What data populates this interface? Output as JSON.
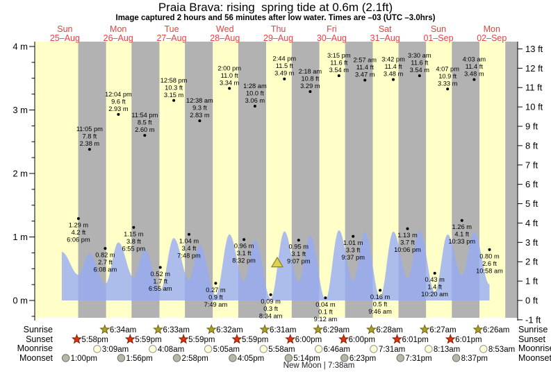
{
  "title": "Praia Brava: rising  spring tide at 0.6m (2.1ft)",
  "subtitle": "Image captured 2 hours and 56 minutes after low water. Times are –03 (UTC –3.0hrs)",
  "colors": {
    "day_band": "#ffffc8",
    "night_band": "#b2b2b2",
    "tide_fill": "#96aaf5",
    "header_red": "#e84040",
    "sunrise_star": "#ac9f2a",
    "sunset_star": "#e2330d",
    "moonrise_fill": "#ffffd8",
    "moonset_fill": "#b6b6aa",
    "marker_fill": "#ddd14f"
  },
  "chart_data": {
    "type": "area",
    "x_axis": {
      "days": [
        {
          "name": "Sun",
          "date": "25–Aug"
        },
        {
          "name": "Mon",
          "date": "26–Aug"
        },
        {
          "name": "Tue",
          "date": "27–Aug"
        },
        {
          "name": "Wed",
          "date": "28–Aug"
        },
        {
          "name": "Thu",
          "date": "29–Aug"
        },
        {
          "name": "Fri",
          "date": "30–Aug"
        },
        {
          "name": "Sat",
          "date": "31–Aug"
        },
        {
          "name": "Sun",
          "date": "01–Sep"
        },
        {
          "name": "Mon",
          "date": "02–Sep"
        }
      ]
    },
    "y_axis_left": {
      "unit": "m",
      "ticks": [
        "4 m",
        "3 m",
        "2 m",
        "1 m",
        "0 m"
      ]
    },
    "y_axis_right": {
      "unit": "ft",
      "ticks": [
        "13 ft",
        "12 ft",
        "11 ft",
        "10 ft",
        "9 ft",
        "8 ft",
        "7 ft",
        "6 ft",
        "5 ft",
        "4 ft",
        "3 ft",
        "2 ft",
        "1 ft",
        "0 ft",
        "-1 ft"
      ]
    },
    "tide_events": [
      {
        "day": 0,
        "type": "low",
        "time": "6:06 pm",
        "height_m": "1.29 m",
        "height_ft": "4.2 ft"
      },
      {
        "day": 0,
        "type": "high",
        "time": "11:05 pm",
        "height_m": "2.38 m",
        "height_ft": "7.8 ft"
      },
      {
        "day": 1,
        "type": "low",
        "time": "6:08 am",
        "height_m": "0.82 m",
        "height_ft": "2.7 ft"
      },
      {
        "day": 1,
        "type": "high",
        "time": "12:04 pm",
        "height_m": "2.93 m",
        "height_ft": "9.6 ft"
      },
      {
        "day": 1,
        "type": "low",
        "time": "6:55 pm",
        "height_m": "1.15 m",
        "height_ft": "3.8 ft"
      },
      {
        "day": 1,
        "type": "high",
        "time": "11:54 pm",
        "height_m": "2.60 m",
        "height_ft": "8.5 ft"
      },
      {
        "day": 2,
        "type": "low",
        "time": "6:55 am",
        "height_m": "0.52 m",
        "height_ft": "1.7 ft"
      },
      {
        "day": 2,
        "type": "high",
        "time": "12:58 pm",
        "height_m": "3.15 m",
        "height_ft": "10.3 ft"
      },
      {
        "day": 2,
        "type": "low",
        "time": "7:48 pm",
        "height_m": "1.04 m",
        "height_ft": "3.4 ft"
      },
      {
        "day": 3,
        "type": "high",
        "time": "12:38 am",
        "height_m": "2.83 m",
        "height_ft": "9.3 ft"
      },
      {
        "day": 3,
        "type": "low",
        "time": "7:49 am",
        "height_m": "0.27 m",
        "height_ft": "0.9 ft"
      },
      {
        "day": 3,
        "type": "high",
        "time": "2:00 pm",
        "height_m": "3.34 m",
        "height_ft": "11.0 ft"
      },
      {
        "day": 3,
        "type": "low",
        "time": "8:32 pm",
        "height_m": "0.96 m",
        "height_ft": "3.1 ft"
      },
      {
        "day": 4,
        "type": "high",
        "time": "1:28 am",
        "height_m": "3.06 m",
        "height_ft": "10.0 ft"
      },
      {
        "day": 4,
        "type": "low",
        "time": "8:34 am",
        "height_m": "0.09 m",
        "height_ft": "0.3 ft"
      },
      {
        "day": 4,
        "type": "high",
        "time": "2:44 pm",
        "height_m": "3.49 m",
        "height_ft": "11.5 ft"
      },
      {
        "day": 4,
        "type": "low",
        "time": "9:07 pm",
        "height_m": "0.95 m",
        "height_ft": "3.1 ft"
      },
      {
        "day": 5,
        "type": "high",
        "time": "2:18 am",
        "height_m": "3.29 m",
        "height_ft": "10.8 ft"
      },
      {
        "day": 5,
        "type": "low",
        "time": "9:12 am",
        "height_m": "0.04 m",
        "height_ft": "0.1 ft"
      },
      {
        "day": 5,
        "type": "high",
        "time": "3:15 pm",
        "height_m": "3.54 m",
        "height_ft": "11.6 ft"
      },
      {
        "day": 5,
        "type": "low",
        "time": "9:37 pm",
        "height_m": "1.01 m",
        "height_ft": "3.3 ft"
      },
      {
        "day": 6,
        "type": "high",
        "time": "2:57 am",
        "height_m": "3.47 m",
        "height_ft": "11.4 ft"
      },
      {
        "day": 6,
        "type": "low",
        "time": "9:46 am",
        "height_m": "0.16 m",
        "height_ft": "0.5 ft"
      },
      {
        "day": 6,
        "type": "high",
        "time": "3:42 pm",
        "height_m": "3.48 m",
        "height_ft": "11.4 ft"
      },
      {
        "day": 6,
        "type": "low",
        "time": "10:06 pm",
        "height_m": "1.13 m",
        "height_ft": "3.7 ft"
      },
      {
        "day": 7,
        "type": "high",
        "time": "3:30 am",
        "height_m": "3.54 m",
        "height_ft": "11.6 ft"
      },
      {
        "day": 7,
        "type": "low",
        "time": "10:20 am",
        "height_m": "0.43 m",
        "height_ft": "1.4 ft"
      },
      {
        "day": 7,
        "type": "high",
        "time": "4:07 pm",
        "height_m": "3.33 m",
        "height_ft": "10.9 ft"
      },
      {
        "day": 7,
        "type": "low",
        "time": "10:33 pm",
        "height_m": "1.26 m",
        "height_ft": "4.1 ft"
      },
      {
        "day": 8,
        "type": "high",
        "time": "4:03 am",
        "height_m": "3.48 m",
        "height_ft": "11.4 ft"
      },
      {
        "day": 8,
        "type": "low",
        "time": "10:58 am",
        "height_m": "0.80 m",
        "height_ft": "2.6 ft"
      }
    ],
    "sun_moon": {
      "sunrise": {
        "label": "Sunrise",
        "events": [
          {
            "day": 1,
            "time": "6:34am"
          },
          {
            "day": 2,
            "time": "6:33am"
          },
          {
            "day": 3,
            "time": "6:32am"
          },
          {
            "day": 4,
            "time": "6:31am"
          },
          {
            "day": 5,
            "time": "6:29am"
          },
          {
            "day": 6,
            "time": "6:28am"
          },
          {
            "day": 7,
            "time": "6:27am"
          },
          {
            "day": 8,
            "time": "6:26am"
          }
        ]
      },
      "sunset": {
        "label": "Sunset",
        "events": [
          {
            "day": 0,
            "time": "5:58pm"
          },
          {
            "day": 1,
            "time": "5:59pm"
          },
          {
            "day": 2,
            "time": "5:59pm"
          },
          {
            "day": 3,
            "time": "5:59pm"
          },
          {
            "day": 4,
            "time": "6:00pm"
          },
          {
            "day": 5,
            "time": "6:00pm"
          },
          {
            "day": 6,
            "time": "6:01pm"
          },
          {
            "day": 7,
            "time": "6:01pm"
          }
        ]
      },
      "moonrise": {
        "label": "Moonrise",
        "events": [
          {
            "day": 1,
            "time": "3:09am"
          },
          {
            "day": 2,
            "time": "4:08am"
          },
          {
            "day": 3,
            "time": "5:05am"
          },
          {
            "day": 4,
            "time": "5:58am"
          },
          {
            "day": 5,
            "time": "6:46am"
          },
          {
            "day": 6,
            "time": "7:31am"
          },
          {
            "day": 7,
            "time": "8:13am"
          },
          {
            "day": 8,
            "time": "8:53am"
          }
        ]
      },
      "moonset": {
        "label": "Moonset",
        "events": [
          {
            "day": 0,
            "time": "1:00pm"
          },
          {
            "day": 1,
            "time": "1:56pm"
          },
          {
            "day": 2,
            "time": "2:58pm"
          },
          {
            "day": 3,
            "time": "4:05pm"
          },
          {
            "day": 4,
            "time": "5:14pm"
          },
          {
            "day": 5,
            "time": "6:23pm"
          },
          {
            "day": 6,
            "time": "7:31pm"
          },
          {
            "day": 7,
            "time": "8:37pm"
          }
        ]
      }
    },
    "captured_marker": {
      "day": 4,
      "time": "11:30 am",
      "height_m": 0.6
    },
    "new_moon": "New Moon | 7:38am"
  }
}
